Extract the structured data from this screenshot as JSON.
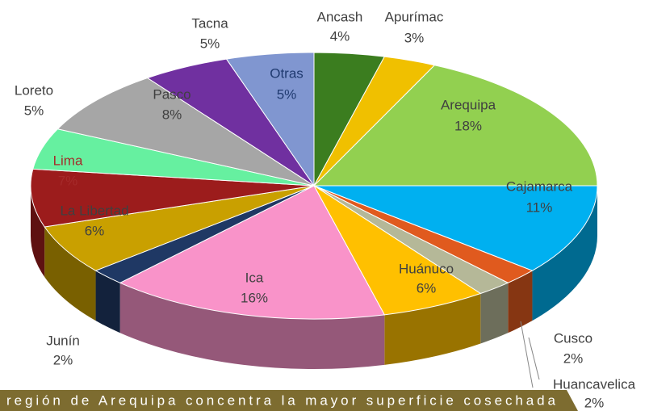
{
  "chart_data": {
    "type": "pie",
    "categories": [
      "Ancash",
      "Apurímac",
      "Arequipa",
      "Cajamarca",
      "Cusco",
      "Huancavelica",
      "Huánuco",
      "Ica",
      "Junín",
      "La Libertad",
      "Lima",
      "Loreto",
      "Pasco",
      "Tacna",
      "Otras"
    ],
    "values": [
      4,
      3,
      18,
      11,
      2,
      2,
      6,
      16,
      2,
      6,
      7,
      5,
      8,
      5,
      5
    ],
    "value_labels": [
      "4%",
      "3%",
      "18%",
      "11%",
      "2%",
      "2%",
      "6%",
      "16%",
      "2%",
      "6%",
      "7%",
      "5%",
      "8%",
      "5%",
      "5%"
    ],
    "colors": [
      "#3b7d1f",
      "#f0c000",
      "#92d050",
      "#00b0f0",
      "#e05a1e",
      "#b5b898",
      "#ffc000",
      "#f993c9",
      "#1f3864",
      "#c9a000",
      "#9c1c1c",
      "#66f0a0",
      "#a6a6a6",
      "#7030a0",
      "#8096d0"
    ],
    "caption": "región de Arequipa concentra la mayor superficie cosechada"
  }
}
